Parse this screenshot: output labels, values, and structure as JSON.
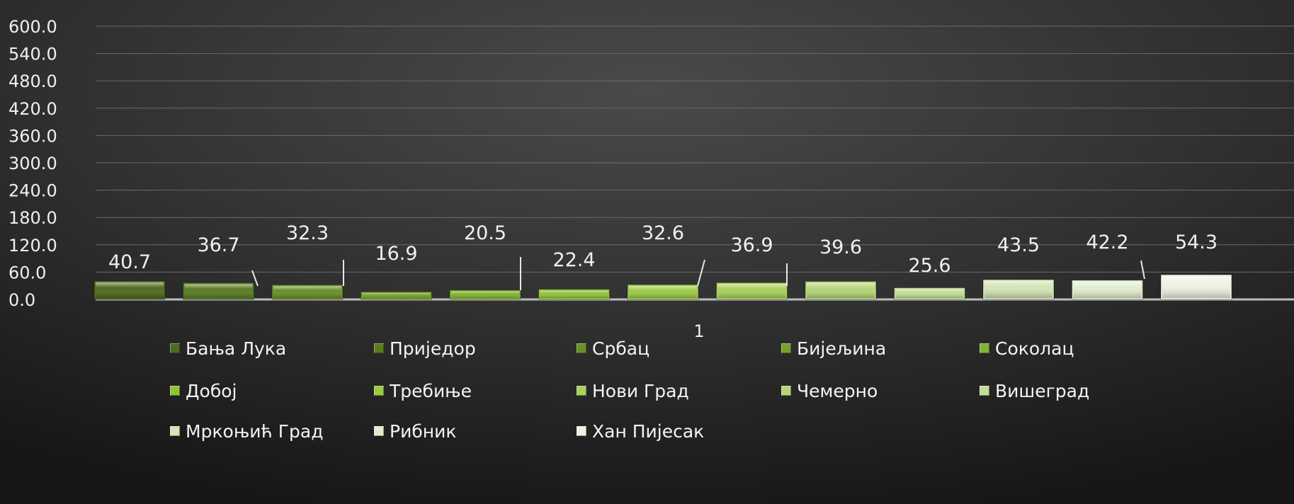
{
  "chart_data": {
    "type": "bar",
    "categories": [
      "1"
    ],
    "series": [
      {
        "name": "Бања Лука",
        "values": [
          40.7
        ],
        "color": "#4e6b1f"
      },
      {
        "name": "Приједор",
        "values": [
          36.7
        ],
        "color": "#5a7c24"
      },
      {
        "name": "Србац",
        "values": [
          32.3
        ],
        "color": "#68902a"
      },
      {
        "name": "Бијељина",
        "values": [
          16.9
        ],
        "color": "#76a12f"
      },
      {
        "name": "Соколац",
        "values": [
          20.5
        ],
        "color": "#82b233"
      },
      {
        "name": "Добој",
        "values": [
          22.4
        ],
        "color": "#8fc23b"
      },
      {
        "name": "Требиње",
        "values": [
          32.6
        ],
        "color": "#9ccb47"
      },
      {
        "name": "Нови Град",
        "values": [
          36.9
        ],
        "color": "#a9d15c"
      },
      {
        "name": "Чемерно",
        "values": [
          39.6
        ],
        "color": "#b5d77a"
      },
      {
        "name": "Вишеград",
        "values": [
          25.6
        ],
        "color": "#c3dc97"
      },
      {
        "name": "Мркоњић Град",
        "values": [
          43.5
        ],
        "color": "#d3e4b5"
      },
      {
        "name": "Рибник",
        "values": [
          42.2
        ],
        "color": "#e2ecd0"
      },
      {
        "name": "Хан Пијесак",
        "values": [
          54.3
        ],
        "color": "#eef3e4"
      }
    ],
    "y_ticks": [
      "0.0",
      "60.0",
      "120.0",
      "180.0",
      "240.0",
      "300.0",
      "360.0",
      "420.0",
      "480.0",
      "540.0",
      "600.0"
    ],
    "ylim": [
      0,
      600
    ],
    "data_labels": [
      "40.7",
      "36.7",
      "32.3",
      "16.9",
      "20.5",
      "22.4",
      "32.6",
      "36.9",
      "39.6",
      "25.6",
      "43.5",
      "42.2",
      "54.3"
    ],
    "x_tick_label": "1",
    "grid": true,
    "legend_position": "bottom",
    "background": "#2b2b2b",
    "grid_color": "#6a6a6a",
    "text_color": "#f0f0f0"
  }
}
